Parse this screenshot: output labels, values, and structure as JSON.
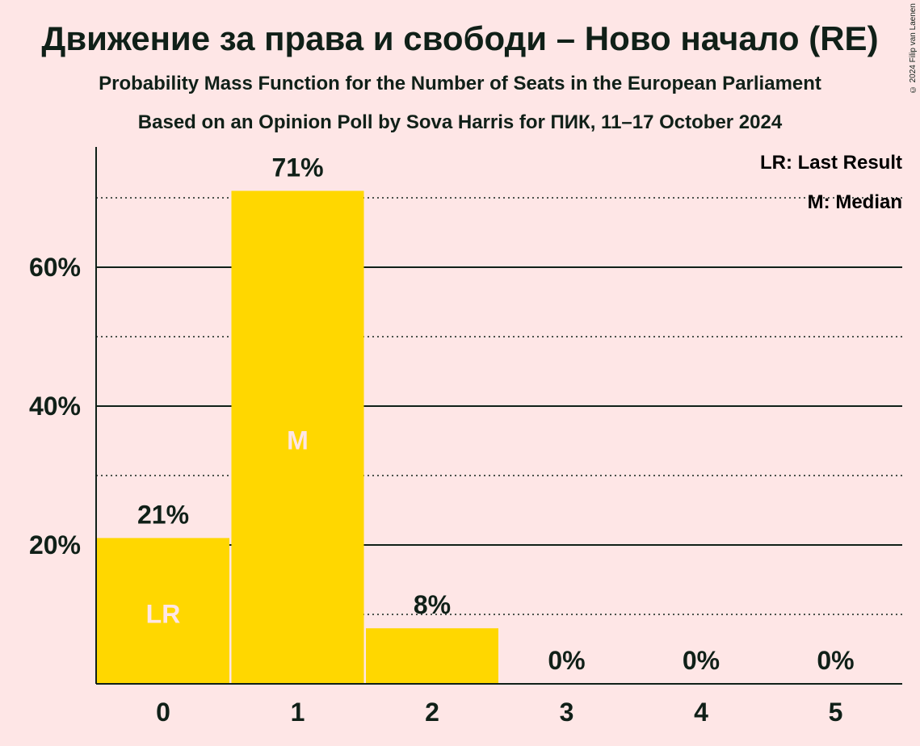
{
  "title": "Движение за права и свободи – Ново начало (RE)",
  "subtitle": "Probability Mass Function for the Number of Seats in the European Parliament",
  "source": "Based on an Opinion Poll by Sova Harris for ПИК, 11–17 October 2024",
  "copyright": "© 2024 Filip van Laenen",
  "legend": [
    "LR: Last Result",
    "M: Median"
  ],
  "colors": {
    "bar": "#FFD700",
    "background": "#FEE6E6",
    "text": "#102018",
    "bar_marker_text": "#FEE6E6"
  },
  "chart_data": {
    "type": "bar",
    "categories": [
      "0",
      "1",
      "2",
      "3",
      "4",
      "5"
    ],
    "values": [
      21,
      71,
      8,
      0,
      0,
      0
    ],
    "value_labels": [
      "21%",
      "71%",
      "8%",
      "0%",
      "0%",
      "0%"
    ],
    "bar_markers": [
      "LR",
      "M",
      "",
      "",
      "",
      ""
    ],
    "yticks": [
      20,
      40,
      60
    ],
    "ytick_labels": [
      "20%",
      "40%",
      "60%"
    ],
    "ylim": [
      0,
      77
    ],
    "grid": true,
    "legend_position": "top-right"
  }
}
